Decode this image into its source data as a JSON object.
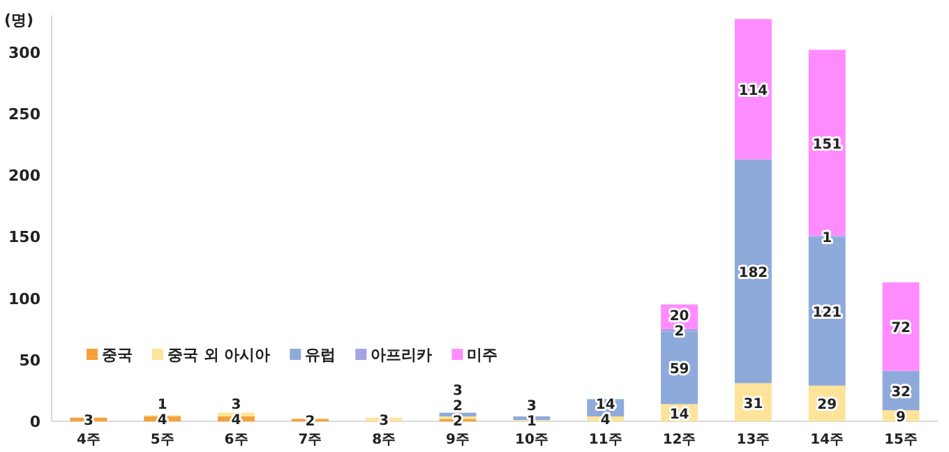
{
  "chart_data": {
    "type": "bar",
    "stacked": true,
    "ylabel": "(명)",
    "categories": [
      "4주",
      "5주",
      "6주",
      "7주",
      "8주",
      "9주",
      "10주",
      "11주",
      "12주",
      "13주",
      "14주",
      "15주"
    ],
    "series": [
      {
        "name": "중국",
        "color": "#f4a13a",
        "values": [
          3,
          4,
          4,
          2,
          null,
          2,
          null,
          null,
          null,
          null,
          null,
          null
        ]
      },
      {
        "name": "중국 외 아시아",
        "color": "#fde49a",
        "values": [
          null,
          1,
          3,
          null,
          3,
          2,
          1,
          4,
          14,
          31,
          29,
          9
        ]
      },
      {
        "name": "유럽",
        "color": "#8eaadb",
        "values": [
          null,
          null,
          null,
          null,
          null,
          3,
          3,
          14,
          59,
          182,
          121,
          32
        ]
      },
      {
        "name": "아프리카",
        "color": "#a3a3e6",
        "values": [
          null,
          null,
          null,
          null,
          null,
          null,
          null,
          null,
          2,
          null,
          1,
          null
        ]
      },
      {
        "name": "미주",
        "color": "#ff8cff",
        "values": [
          null,
          null,
          null,
          null,
          null,
          null,
          null,
          null,
          20,
          114,
          151,
          72
        ]
      }
    ],
    "ylim": [
      0,
      330
    ],
    "yticks": [
      0,
      50,
      100,
      150,
      200,
      250,
      300
    ],
    "data_labels": true,
    "legend": "bottom left",
    "grid": false
  }
}
